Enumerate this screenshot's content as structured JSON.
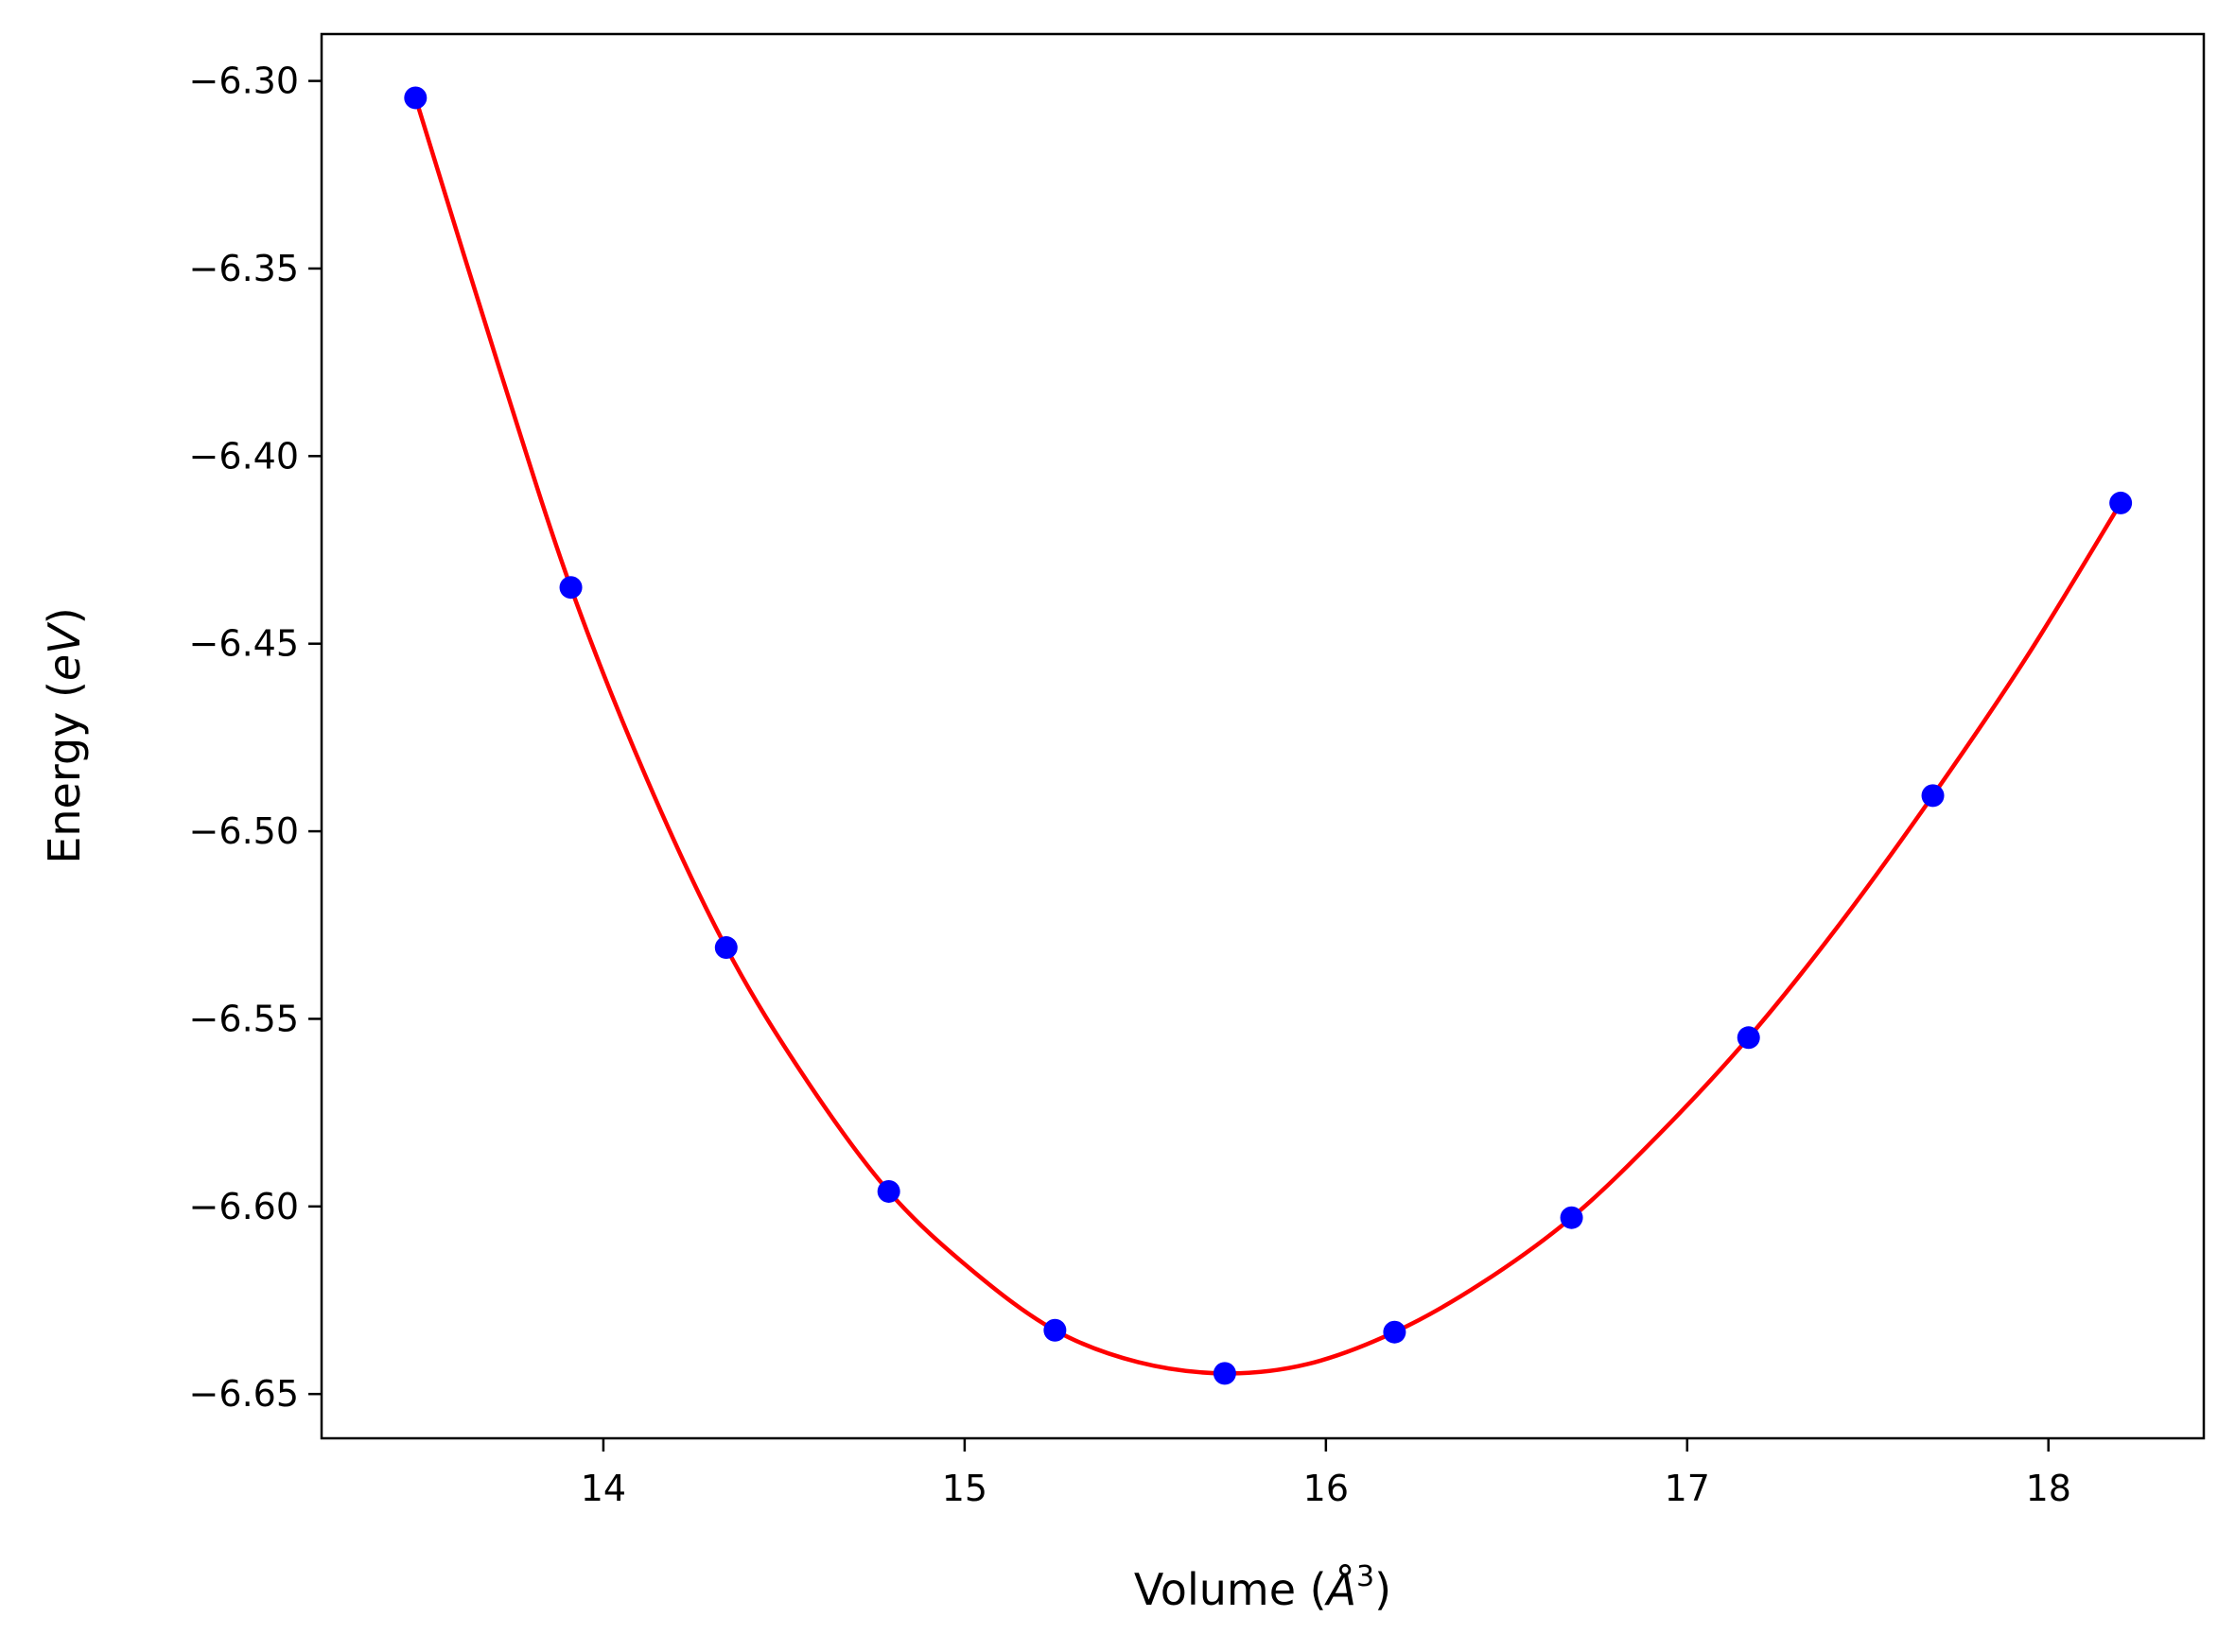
{
  "chart_data": {
    "type": "scatter",
    "xlabel": "Volume (Å³)",
    "xlabel_parts": {
      "pre": "Volume (",
      "var": "Å",
      "sup": "3",
      "post": ")"
    },
    "ylabel": "Energy (eV)",
    "ylabel_parts": {
      "pre": "Energy (",
      "var": "eV",
      "post": ")"
    },
    "xlim": [
      13.22,
      18.43
    ],
    "ylim": [
      -6.6618,
      -6.2875
    ],
    "xticks": [
      14,
      15,
      16,
      17,
      18
    ],
    "xtick_labels": [
      "14",
      "15",
      "16",
      "17",
      "18"
    ],
    "yticks": [
      -6.3,
      -6.35,
      -6.4,
      -6.45,
      -6.5,
      -6.55,
      -6.6,
      -6.65
    ],
    "ytick_labels": [
      "−6.30",
      "−6.35",
      "−6.40",
      "−6.45",
      "−6.50",
      "−6.55",
      "−6.60",
      "−6.65"
    ],
    "grid": false,
    "series": [
      {
        "kind": "points",
        "color": "#0000ff",
        "x": [
          13.48,
          13.91,
          14.34,
          14.79,
          15.25,
          15.72,
          16.19,
          16.68,
          17.17,
          17.68,
          18.2
        ],
        "y": [
          -6.3045,
          -6.435,
          -6.531,
          -6.596,
          -6.633,
          -6.6445,
          -6.6335,
          -6.603,
          -6.555,
          -6.4905,
          -6.4125
        ]
      },
      {
        "kind": "fit-line",
        "color": "#ff0000",
        "x": [
          13.48,
          13.71,
          13.91,
          14.12,
          14.34,
          14.56,
          14.79,
          15.02,
          15.25,
          15.48,
          15.72,
          15.95,
          16.19,
          16.43,
          16.68,
          16.92,
          17.17,
          17.42,
          17.68,
          17.94,
          18.2
        ],
        "y": [
          -6.3045,
          -6.376,
          -6.435,
          -6.486,
          -6.531,
          -6.566,
          -6.596,
          -6.617,
          -6.633,
          -6.6415,
          -6.6445,
          -6.642,
          -6.6335,
          -6.6205,
          -6.603,
          -6.581,
          -6.555,
          -6.525,
          -6.4905,
          -6.4535,
          -6.4125
        ]
      }
    ]
  }
}
